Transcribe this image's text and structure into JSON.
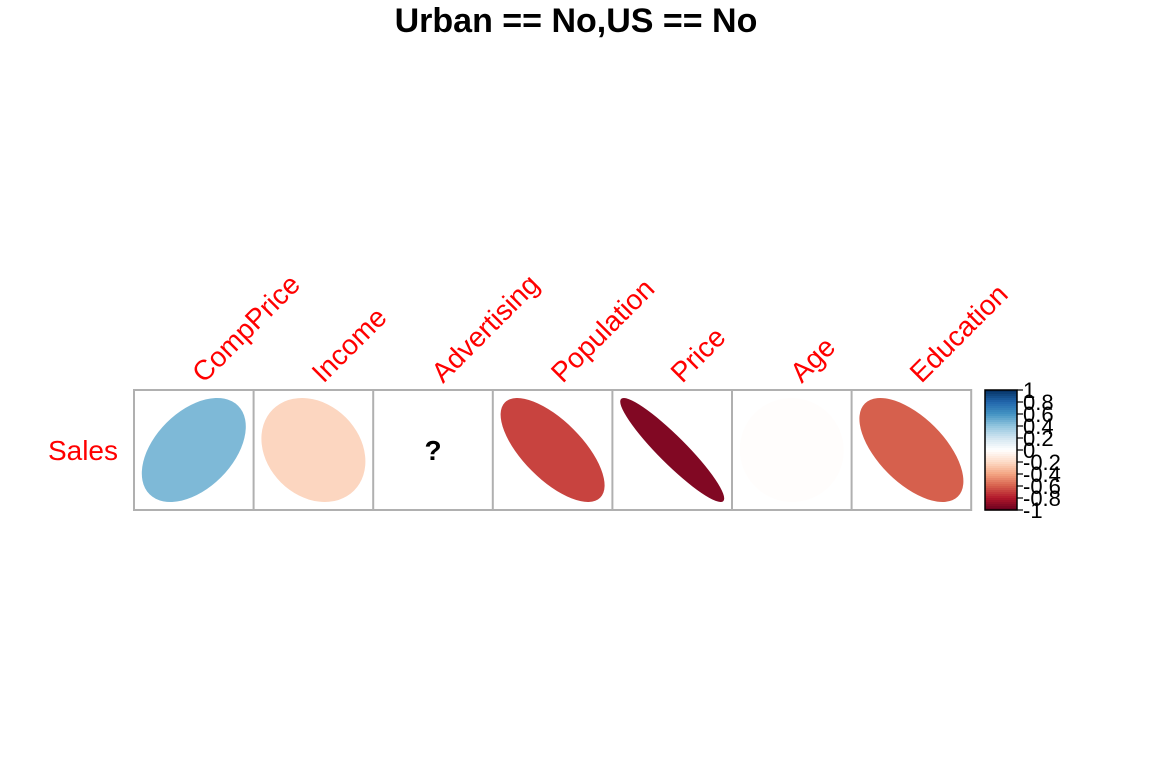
{
  "chart_data": {
    "type": "heatmap",
    "subtype": "correlation-ellipse",
    "title": "Urban == No,US == No",
    "rows": [
      "Sales"
    ],
    "columns": [
      "CompPrice",
      "Income",
      "Advertising",
      "Population",
      "Price",
      "Age",
      "Education"
    ],
    "values": [
      [
        0.45,
        -0.22,
        null,
        -0.68,
        -0.93,
        -0.01,
        -0.6
      ]
    ],
    "missing_symbol": "?",
    "label_color": "#ff0000",
    "colorbar": {
      "ticks": [
        "1",
        "0.8",
        "0.6",
        "0.4",
        "0.2",
        "0",
        "-0.2",
        "-0.4",
        "-0.6",
        "-0.8",
        "-1"
      ],
      "range": [
        -1,
        1
      ],
      "colors": [
        "#67001f",
        "#b2182b",
        "#d6604d",
        "#f4a582",
        "#fddbc7",
        "#ffffff",
        "#d1e5f0",
        "#92c5de",
        "#4393c3",
        "#2166ac",
        "#053061"
      ]
    }
  }
}
